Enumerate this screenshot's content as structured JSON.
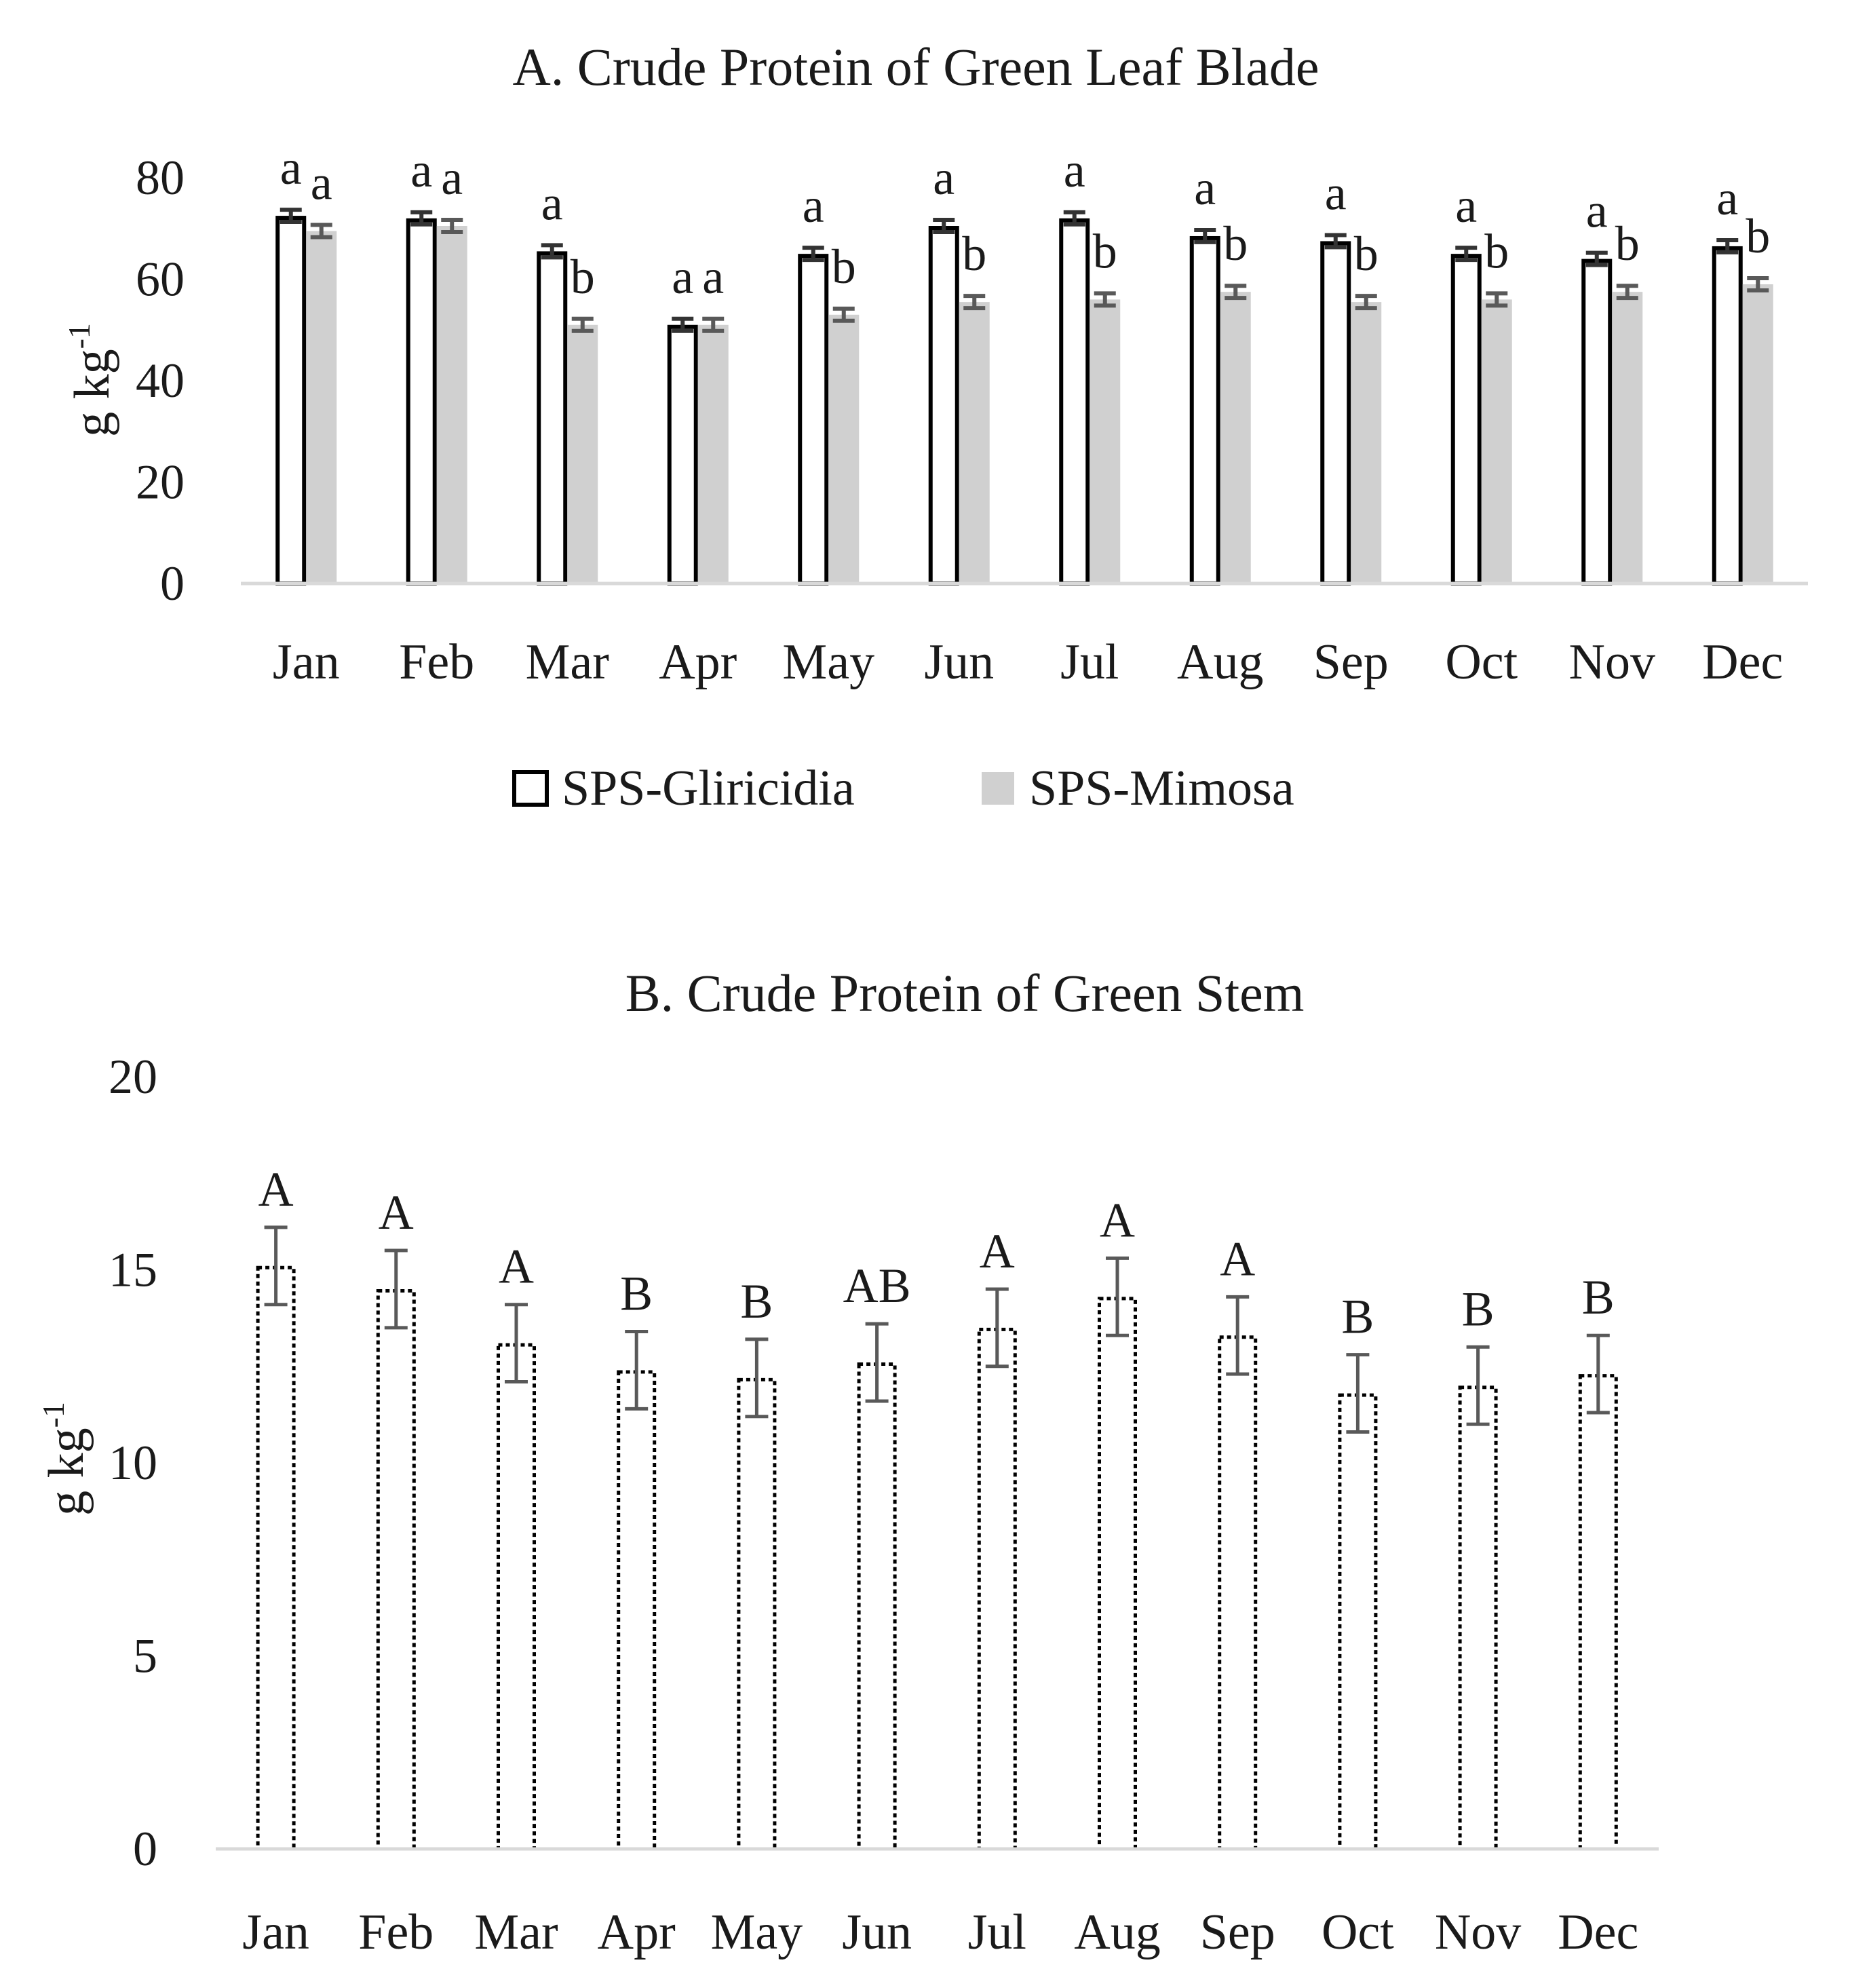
{
  "chart_data": [
    {
      "type": "bar",
      "title": "A. Crude Protein of Green Leaf Blade",
      "ylabel": "g kg",
      "ylabel_sup": "-1",
      "xlabel": "",
      "ylim": [
        0,
        80
      ],
      "yticks": [
        0,
        20,
        40,
        60,
        80
      ],
      "grid": false,
      "legend_position": "bottom",
      "categories": [
        "Jan",
        "Feb",
        "Mar",
        "Apr",
        "May",
        "Jun",
        "Jul",
        "Aug",
        "Sep",
        "Oct",
        "Nov",
        "Dec"
      ],
      "series": [
        {
          "name": "SPS-Gliricidia",
          "values": [
            72.5,
            72,
            65.5,
            51,
            65,
            70.5,
            72,
            68.5,
            67.5,
            65,
            64,
            66.5
          ],
          "errors": [
            1.2,
            1.2,
            1.2,
            1.2,
            1.2,
            1.2,
            1.2,
            1.2,
            1.2,
            1.2,
            1.2,
            1.2
          ],
          "labels": [
            "a",
            "a",
            "a",
            "a",
            "a",
            "a",
            "a",
            "a",
            "a",
            "a",
            "a",
            "a"
          ],
          "fill": "#ffffff",
          "stroke": "#000000",
          "error_color": "#333333"
        },
        {
          "name": "SPS-Mimosa",
          "values": [
            69.5,
            70.5,
            51,
            51,
            53,
            55.5,
            56,
            57.5,
            55.5,
            56,
            57.5,
            59
          ],
          "errors": [
            1.2,
            1.2,
            1.2,
            1.2,
            1.2,
            1.2,
            1.2,
            1.2,
            1.2,
            1.2,
            1.2,
            1.2
          ],
          "labels": [
            "a",
            "a",
            "b",
            "a",
            "b",
            "b",
            "b",
            "b",
            "b",
            "b",
            "b",
            "b"
          ],
          "fill": "#d0d0d0",
          "stroke": "#d0d0d0",
          "error_color": "#595959"
        }
      ]
    },
    {
      "type": "bar",
      "title": "B. Crude Protein of Green Stem",
      "ylabel": "g kg",
      "ylabel_sup": "-1",
      "xlabel": "",
      "ylim": [
        0,
        20
      ],
      "yticks": [
        0,
        5,
        10,
        15,
        20
      ],
      "grid": false,
      "categories": [
        "Jan",
        "Feb",
        "Mar",
        "Apr",
        "May",
        "Jun",
        "Jul",
        "Aug",
        "Sep",
        "Oct",
        "Nov",
        "Dec"
      ],
      "series": [
        {
          "name": "Green Stem",
          "values": [
            15.1,
            14.5,
            13.1,
            12.4,
            12.2,
            12.6,
            13.5,
            14.3,
            13.3,
            11.8,
            12,
            12.3
          ],
          "errors": [
            1,
            1,
            1,
            1,
            1,
            1,
            1,
            1,
            1,
            1,
            1,
            1
          ],
          "labels": [
            "A",
            "A",
            "A",
            "B",
            "B",
            "AB",
            "A",
            "A",
            "A",
            "B",
            "B",
            "B"
          ],
          "fill": "#ffffff",
          "stroke": "#000000",
          "error_color": "#595959"
        }
      ]
    }
  ]
}
